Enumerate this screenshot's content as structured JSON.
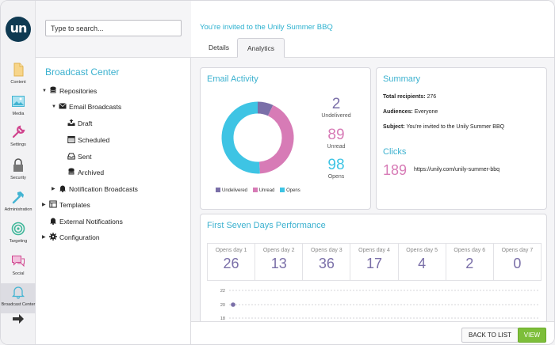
{
  "rail": {
    "logo_text": "un",
    "items": [
      {
        "label": "Content",
        "icon": "document-icon"
      },
      {
        "label": "Media",
        "icon": "image-icon"
      },
      {
        "label": "Settings",
        "icon": "wrench-icon"
      },
      {
        "label": "Security",
        "icon": "lock-icon"
      },
      {
        "label": "Administration",
        "icon": "hammer-icon"
      },
      {
        "label": "Targeting",
        "icon": "target-icon"
      },
      {
        "label": "Social",
        "icon": "chat-icon"
      },
      {
        "label": "Broadcast Center",
        "icon": "bell-icon"
      }
    ]
  },
  "tree": {
    "search_placeholder": "Type to search...",
    "title": "Broadcast Center",
    "nodes": {
      "repositories": "Repositories",
      "email_broadcasts": "Email Broadcasts",
      "draft": "Draft",
      "scheduled": "Scheduled",
      "sent": "Sent",
      "archived": "Archived",
      "notification_broadcasts": "Notification Broadcasts",
      "templates": "Templates",
      "external_notifications": "External Notifications",
      "configuration": "Configuration"
    }
  },
  "header": {
    "title": "You're invited to the Unily Summer BBQ",
    "tabs": [
      "Details",
      "Analytics"
    ],
    "active_tab": "Analytics"
  },
  "email_activity": {
    "title": "Email Activity",
    "stats": [
      {
        "value": "2",
        "label": "Undelivered",
        "color": "#7a6fa8"
      },
      {
        "value": "89",
        "label": "Unread",
        "color": "#d77bb6"
      },
      {
        "value": "98",
        "label": "Opens",
        "color": "#3ec4e4"
      }
    ],
    "legend": [
      "Undelivered",
      "Unread",
      "Opens"
    ]
  },
  "chart_data": {
    "type": "pie",
    "categories": [
      "Undelivered",
      "Unread",
      "Opens"
    ],
    "values": [
      7,
      42,
      51
    ],
    "colors": [
      "#7a6fa8",
      "#d77bb6",
      "#3ec4e4"
    ],
    "donut": true
  },
  "summary": {
    "title": "Summary",
    "total_label": "Total recipients:",
    "total_value": "276",
    "audiences_label": "Audiences:",
    "audiences_value": "Everyone",
    "subject_label": "Subject:",
    "subject_value": "You're invited to the Unily Summer BBQ",
    "clicks_title": "Clicks",
    "clicks_count": "189",
    "clicks_url": "https://unily.com/unily-summer-bbq"
  },
  "performance": {
    "title": "First Seven Days Performance",
    "days": [
      {
        "label": "Opens day 1",
        "value": "26"
      },
      {
        "label": "Opens day 2",
        "value": "13"
      },
      {
        "label": "Opens day 3",
        "value": "36"
      },
      {
        "label": "Opens day 4",
        "value": "17"
      },
      {
        "label": "Opens day 5",
        "value": "4"
      },
      {
        "label": "Opens day 6",
        "value": "2"
      },
      {
        "label": "Opens day 7",
        "value": "0"
      }
    ],
    "axis_ticks": [
      "22",
      "20",
      "18"
    ],
    "point_value": 20
  },
  "footer": {
    "back_label": "BACK TO LIST",
    "view_label": "VIEW"
  },
  "colors": {
    "accent": "#3bb1cf",
    "undelivered": "#7a6fa8",
    "unread": "#d77bb6",
    "opens": "#3ec4e4",
    "view_button": "#7dbe3a"
  }
}
